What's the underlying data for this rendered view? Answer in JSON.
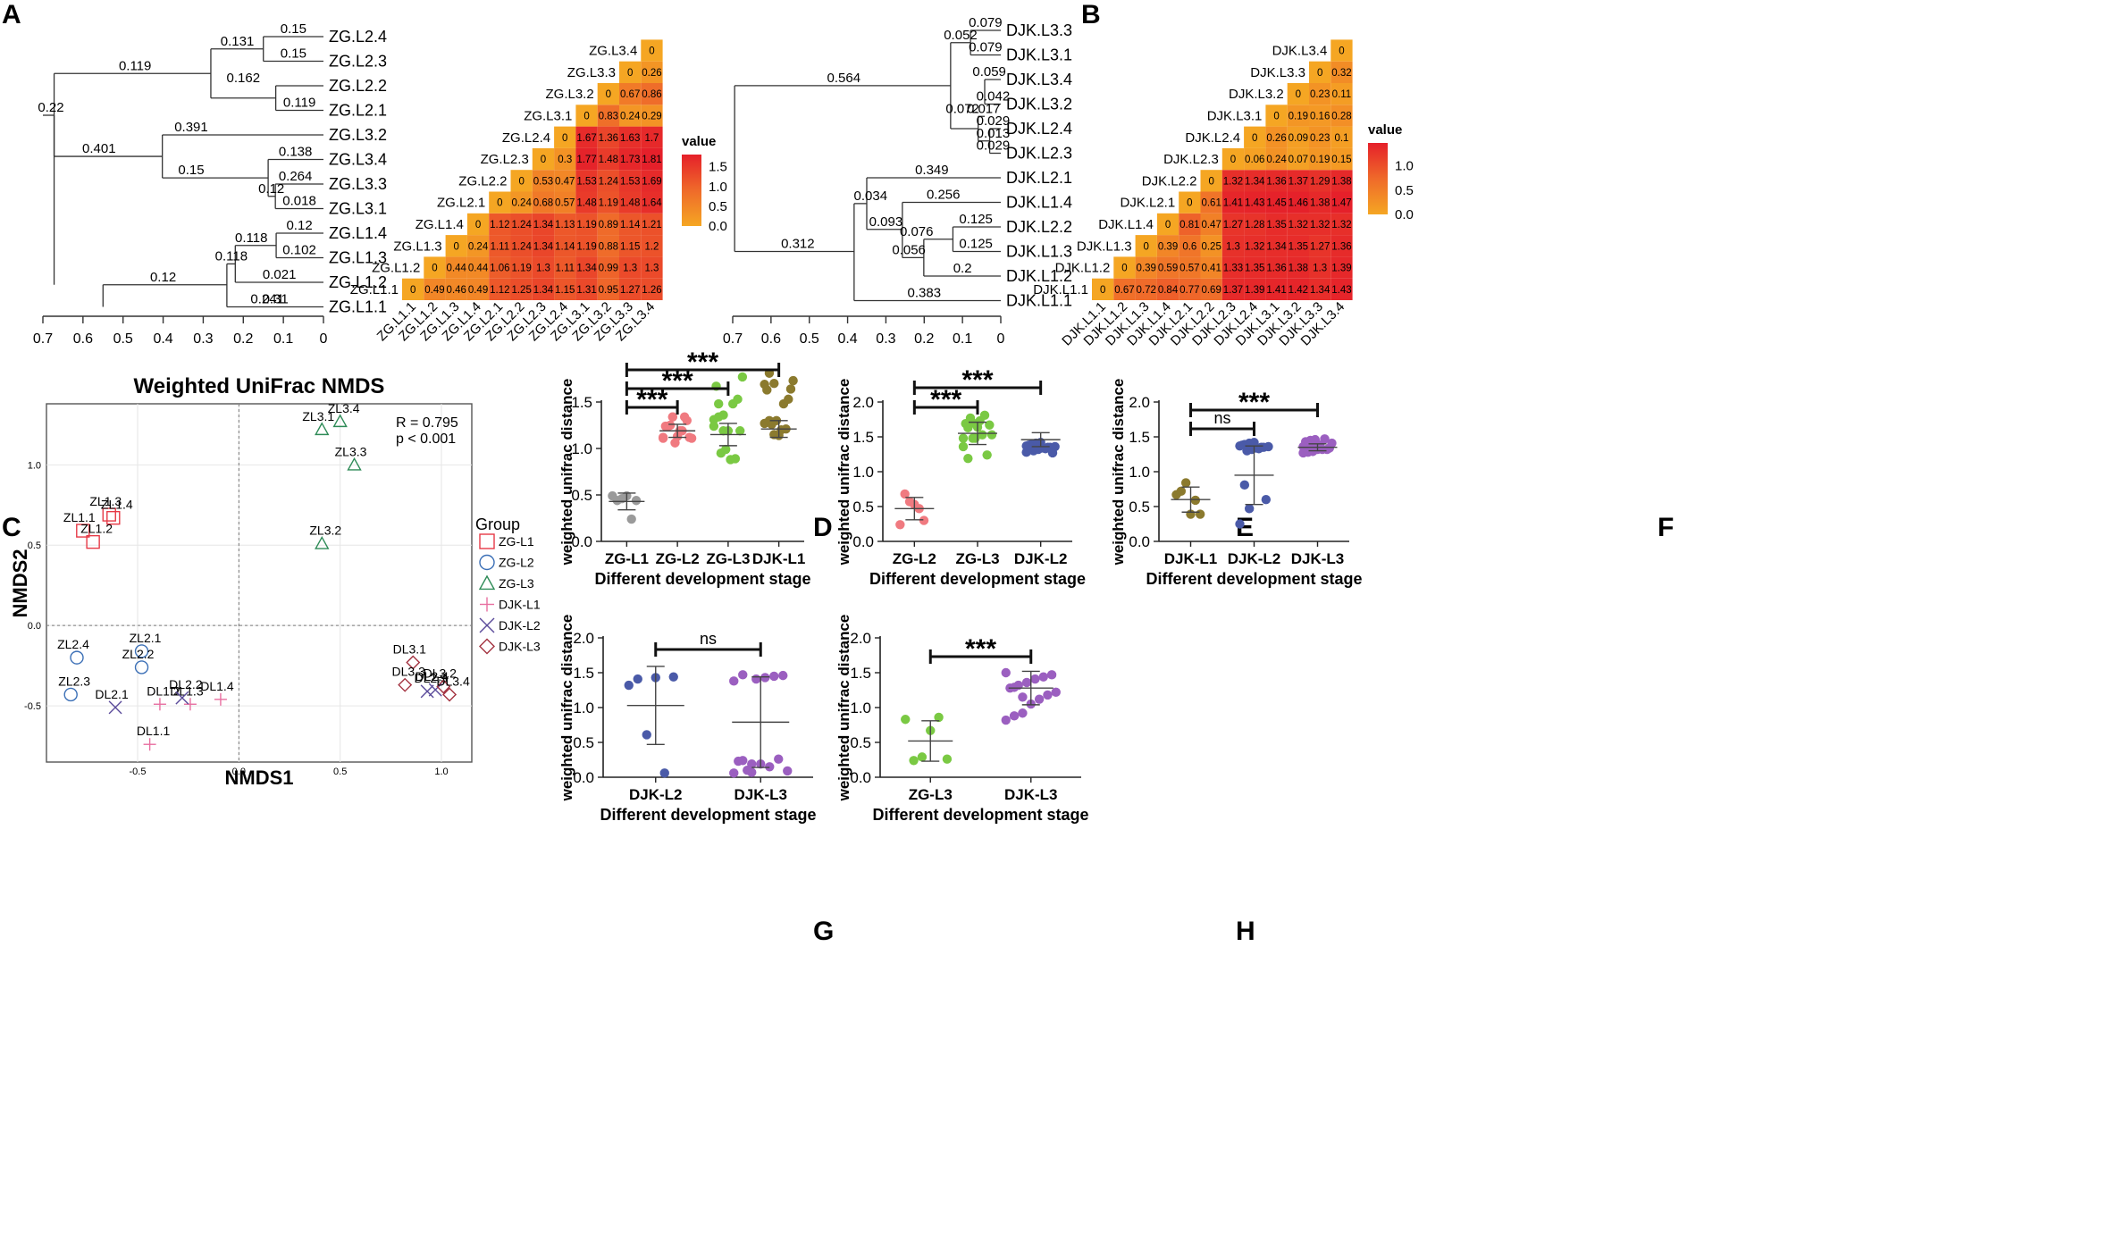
{
  "colors": {
    "heat_low": "#f5a623",
    "heat_mid": "#ef6a2a",
    "heat_high": "#e5202a",
    "ZG-L1": "#e63946",
    "ZG-L2": "#3b6fb6",
    "ZG-L3": "#2e8b57",
    "DJK-L1": "#e86fa0",
    "DJK-L2": "#5a4a9a",
    "DJK-L3": "#a33240",
    "strip_grey": "#9a9a9a",
    "strip_pink": "#f07a80",
    "strip_green": "#7ac943",
    "strip_olive": "#8b7a2e",
    "strip_navy": "#4a5aa8",
    "strip_purple": "#9b5fc0"
  },
  "panel_letters": [
    "A",
    "B",
    "C",
    "D",
    "E",
    "F",
    "G",
    "H"
  ],
  "chart_data": [
    {
      "panel": "A",
      "type": "dendrogram",
      "leaves": [
        "ZG.L2.4",
        "ZG.L2.3",
        "ZG.L2.2",
        "ZG.L2.1",
        "ZG.L3.2",
        "ZG.L3.4",
        "ZG.L3.3",
        "ZG.L3.1",
        "ZG.L1.4",
        "ZG.L1.3",
        "ZG.L1.2",
        "ZG.L1.1"
      ],
      "branch_labels": [
        "0.15",
        "0.15",
        "0.131",
        "0.162",
        "0.119",
        "0.119",
        "0.391",
        "0.401",
        "0.15",
        "0.138",
        "0.264",
        "0.12",
        "0.018",
        "0.12",
        "0.118",
        "0.102",
        "0.118",
        "0.021",
        "0.22",
        "0.12",
        "0.31",
        "0.241"
      ],
      "axis_ticks": [
        "0.7",
        "0.6",
        "0.5",
        "0.4",
        "0.3",
        "0.2",
        "0.1",
        "0"
      ],
      "xlim": [
        0.7,
        0
      ]
    },
    {
      "panel": "A",
      "type": "heatmap",
      "labels": [
        "ZG.L1.1",
        "ZG.L1.2",
        "ZG.L1.3",
        "ZG.L1.4",
        "ZG.L2.1",
        "ZG.L2.2",
        "ZG.L2.3",
        "ZG.L2.4",
        "ZG.L3.1",
        "ZG.L3.2",
        "ZG.L3.3",
        "ZG.L3.4"
      ],
      "rows": [
        [
          "0",
          "0.49",
          "0.46",
          "0.49",
          "1.12",
          "1.25",
          "1.34",
          "1.15",
          "1.31",
          "0.95",
          "1.27",
          "1.26"
        ],
        [
          "0",
          "0.44",
          "0.44",
          "1.06",
          "1.19",
          "1.3",
          "1.11",
          "1.34",
          "0.99",
          "1.3",
          "1.3"
        ],
        [
          "0",
          "0.24",
          "1.11",
          "1.24",
          "1.34",
          "1.14",
          "1.19",
          "0.88",
          "1.15",
          "1.2"
        ],
        [
          "0",
          "1.12",
          "1.24",
          "1.34",
          "1.13",
          "1.19",
          "0.89",
          "1.14",
          "1.21"
        ],
        [
          "0",
          "0.24",
          "0.68",
          "0.57",
          "1.48",
          "1.19",
          "1.48",
          "1.64"
        ],
        [
          "0",
          "0.53",
          "0.47",
          "1.53",
          "1.24",
          "1.53",
          "1.69"
        ],
        [
          "0",
          "0.3",
          "1.77",
          "1.48",
          "1.73",
          "1.81"
        ],
        [
          "0",
          "1.67",
          "1.36",
          "1.63",
          "1.7"
        ],
        [
          "0",
          "0.83",
          "0.24",
          "0.29"
        ],
        [
          "0",
          "0.67",
          "0.86"
        ],
        [
          "0",
          "0.26"
        ],
        [
          "0"
        ]
      ],
      "legend_title": "value",
      "legend_ticks": [
        "1.5",
        "1.0",
        "0.5",
        "0.0"
      ],
      "vmax": 1.81
    },
    {
      "panel": "B",
      "type": "dendrogram",
      "leaves": [
        "DJK.L3.3",
        "DJK.L3.1",
        "DJK.L3.4",
        "DJK.L3.2",
        "DJK.L2.4",
        "DJK.L2.3",
        "DJK.L2.1",
        "DJK.L1.4",
        "DJK.L2.2",
        "DJK.L1.3",
        "DJK.L1.2",
        "DJK.L1.1"
      ],
      "branch_labels": [
        "0.079",
        "0.052",
        "0.079",
        "0.564",
        "0.059",
        "0.072",
        "0.042",
        "0.017",
        "0.029",
        "0.013",
        "0.029",
        "0.349",
        "0.034",
        "0.256",
        "0.093",
        "0.125",
        "0.076",
        "0.056",
        "0.125",
        "0.2",
        "0.312",
        "0.383"
      ],
      "axis_ticks": [
        "0.7",
        "0.6",
        "0.5",
        "0.4",
        "0.3",
        "0.2",
        "0.1",
        "0"
      ],
      "xlim": [
        0.7,
        0
      ]
    },
    {
      "panel": "B",
      "type": "heatmap",
      "labels": [
        "DJK.L1.1",
        "DJK.L1.2",
        "DJK.L1.3",
        "DJK.L1.4",
        "DJK.L2.1",
        "DJK.L2.2",
        "DJK.L2.3",
        "DJK.L2.4",
        "DJK.L3.1",
        "DJK.L3.2",
        "DJK.L3.3",
        "DJK.L3.4"
      ],
      "rows": [
        [
          "0",
          "0.67",
          "0.72",
          "0.84",
          "0.77",
          "0.69",
          "1.37",
          "1.39",
          "1.41",
          "1.42",
          "1.34",
          "1.43"
        ],
        [
          "0",
          "0.39",
          "0.59",
          "0.57",
          "0.41",
          "1.33",
          "1.35",
          "1.36",
          "1.38",
          "1.3",
          "1.39"
        ],
        [
          "0",
          "0.39",
          "0.6",
          "0.25",
          "1.3",
          "1.32",
          "1.34",
          "1.35",
          "1.27",
          "1.36"
        ],
        [
          "0",
          "0.81",
          "0.47",
          "1.27",
          "1.28",
          "1.35",
          "1.32",
          "1.32",
          "1.32"
        ],
        [
          "0",
          "0.61",
          "1.41",
          "1.43",
          "1.45",
          "1.46",
          "1.38",
          "1.47"
        ],
        [
          "0",
          "1.32",
          "1.34",
          "1.36",
          "1.37",
          "1.29",
          "1.38"
        ],
        [
          "0",
          "0.06",
          "0.24",
          "0.07",
          "0.19",
          "0.15"
        ],
        [
          "0",
          "0.26",
          "0.09",
          "0.23",
          "0.1"
        ],
        [
          "0",
          "0.19",
          "0.16",
          "0.28"
        ],
        [
          "0",
          "0.23",
          "0.11"
        ],
        [
          "0",
          "0.32"
        ],
        [
          "0"
        ]
      ],
      "legend_title": "value",
      "legend_ticks": [
        "1.0",
        "0.5",
        "0.0"
      ],
      "vmax": 1.47
    },
    {
      "panel": "C",
      "type": "scatter",
      "title": "Weighted UniFrac  NMDS",
      "xlabel": "NMDS1",
      "ylabel": "NMDS2",
      "stat_r": "R = 0.795",
      "stat_p": "p < 0.001",
      "xlim": [
        -0.95,
        1.15
      ],
      "ylim": [
        -0.85,
        1.38
      ],
      "xticks": [
        "-0.5",
        "0.0",
        "0.5",
        "1.0"
      ],
      "yticks": [
        "1.0",
        "0.5",
        "0.0",
        "-0.5"
      ],
      "legend_title": "Group",
      "groups": [
        {
          "name": "ZG-L1",
          "marker": "square",
          "points": [
            {
              "label": "ZL1.3",
              "x": -0.64,
              "y": 0.69
            },
            {
              "label": "ZL1.4",
              "x": -0.62,
              "y": 0.67
            },
            {
              "label": "ZL1.1",
              "x": -0.77,
              "y": 0.59
            },
            {
              "label": "ZL1.2",
              "x": -0.72,
              "y": 0.52
            }
          ]
        },
        {
          "name": "ZG-L2",
          "marker": "circle",
          "points": [
            {
              "label": "ZL2.4",
              "x": -0.8,
              "y": -0.2
            },
            {
              "label": "ZL2.1",
              "x": -0.48,
              "y": -0.16
            },
            {
              "label": "ZL2.2",
              "x": -0.48,
              "y": -0.26
            },
            {
              "label": "ZL2.3",
              "x": -0.83,
              "y": -0.43
            }
          ]
        },
        {
          "name": "ZG-L3",
          "marker": "triangle",
          "points": [
            {
              "label": "ZL3.1",
              "x": 0.41,
              "y": 1.22
            },
            {
              "label": "ZL3.4",
              "x": 0.5,
              "y": 1.27
            },
            {
              "label": "ZL3.3",
              "x": 0.57,
              "y": 1.0
            },
            {
              "label": "ZL3.2",
              "x": 0.41,
              "y": 0.51
            }
          ]
        },
        {
          "name": "DJK-L1",
          "marker": "plus",
          "points": [
            {
              "label": "DL1.4",
              "x": -0.09,
              "y": -0.46
            },
            {
              "label": "DL1.2",
              "x": -0.39,
              "y": -0.49
            },
            {
              "label": "DL1.3",
              "x": -0.24,
              "y": -0.49
            },
            {
              "label": "DL1.1",
              "x": -0.44,
              "y": -0.74
            }
          ]
        },
        {
          "name": "DJK-L2",
          "marker": "cross",
          "points": [
            {
              "label": "DL2.1",
              "x": -0.61,
              "y": -0.51
            },
            {
              "label": "DL2.2",
              "x": -0.28,
              "y": -0.45
            },
            {
              "label": "DL2.4",
              "x": 0.97,
              "y": -0.4
            },
            {
              "label": "DL2.3",
              "x": 0.93,
              "y": -0.41
            }
          ]
        },
        {
          "name": "DJK-L3",
          "marker": "diamond",
          "points": [
            {
              "label": "DL3.1",
              "x": 0.86,
              "y": -0.23
            },
            {
              "label": "DL3.3",
              "x": 0.82,
              "y": -0.37
            },
            {
              "label": "DL3.2",
              "x": 1.01,
              "y": -0.38
            },
            {
              "label": "DL3.4",
              "x": 1.04,
              "y": -0.43
            }
          ]
        }
      ]
    },
    {
      "panel": "D",
      "type": "strip",
      "ylabel": "weighted unifrac distance",
      "xlabel": "Different development stage",
      "ylim": [
        0,
        1.5
      ],
      "yticks": [
        "0.0",
        "0.5",
        "1.0",
        "1.5"
      ],
      "categories": [
        "ZG-L1",
        "ZG-L2",
        "ZG-L3",
        "DJK-L1"
      ],
      "colors": [
        "strip_grey",
        "strip_pink",
        "strip_green",
        "strip_olive"
      ],
      "means": [
        0.43,
        1.19,
        1.15,
        1.21
      ],
      "sds": [
        0.09,
        0.07,
        0.12,
        0.09
      ],
      "points": [
        [
          0.49,
          0.44,
          0.46,
          0.49,
          0.24,
          0.44
        ],
        [
          1.12,
          1.24,
          1.34,
          1.13,
          1.19,
          1.3,
          1.11,
          1.24,
          1.25,
          1.06,
          1.19,
          1.34,
          1.12,
          1.11,
          1.24,
          1.34
        ],
        [
          1.31,
          1.34,
          1.19,
          1.19,
          1.48,
          1.53,
          1.77,
          1.67,
          0.95,
          0.99,
          0.88,
          0.89,
          1.19,
          1.24,
          1.48,
          1.36
        ],
        [
          1.27,
          1.3,
          1.15,
          1.14,
          1.48,
          1.53,
          1.73,
          1.63,
          1.26,
          1.3,
          1.2,
          1.21,
          1.64,
          1.69,
          1.81,
          1.7
        ]
      ],
      "brackets": [
        {
          "from": 0,
          "to": 1,
          "level": 1,
          "label": "***"
        },
        {
          "from": 0,
          "to": 2,
          "level": 2,
          "label": "***"
        },
        {
          "from": 0,
          "to": 3,
          "level": 3,
          "label": "***"
        }
      ]
    },
    {
      "panel": "E",
      "type": "strip",
      "ylabel": "weighted unifrac distance",
      "xlabel": "Different development stage",
      "ylim": [
        0,
        2.0
      ],
      "yticks": [
        "0.0",
        "0.5",
        "1.0",
        "1.5",
        "2.0"
      ],
      "categories": [
        "ZG-L2",
        "ZG-L3",
        "DJK-L2"
      ],
      "colors": [
        "strip_pink",
        "strip_green",
        "strip_navy"
      ],
      "means": [
        0.47,
        1.55,
        1.46
      ],
      "sds": [
        0.16,
        0.16,
        0.1
      ],
      "points": [
        [
          0.24,
          0.68,
          0.57,
          0.53,
          0.47,
          0.3
        ],
        [
          1.48,
          1.19,
          1.48,
          1.64,
          1.53,
          1.24,
          1.53,
          1.69,
          1.77,
          1.48,
          1.73,
          1.81,
          1.67,
          1.36,
          1.63,
          1.7
        ],
        [
          1.37,
          1.39,
          1.41,
          1.42,
          1.33,
          1.35,
          1.36,
          1.38,
          1.3,
          1.32,
          1.34,
          1.35,
          1.27,
          1.28,
          1.35,
          1.32
        ]
      ],
      "brackets": [
        {
          "from": 0,
          "to": 1,
          "level": 1,
          "label": "***"
        },
        {
          "from": 0,
          "to": 2,
          "level": 2,
          "label": "***"
        }
      ]
    },
    {
      "panel": "F",
      "type": "strip",
      "ylabel": "weighted unifrac distance",
      "xlabel": "Different development stage",
      "ylim": [
        0,
        2.0
      ],
      "yticks": [
        "0.0",
        "0.5",
        "1.0",
        "1.5",
        "2.0"
      ],
      "categories": [
        "DJK-L1",
        "DJK-L2",
        "DJK-L3"
      ],
      "colors": [
        "strip_olive",
        "strip_navy",
        "strip_purple"
      ],
      "means": [
        0.6,
        0.95,
        1.35
      ],
      "sds": [
        0.18,
        0.42,
        0.05
      ],
      "points": [
        [
          0.67,
          0.72,
          0.84,
          0.39,
          0.59,
          0.39
        ],
        [
          1.37,
          1.39,
          1.41,
          1.42,
          1.33,
          1.35,
          1.36,
          1.38,
          1.3,
          1.32,
          1.34,
          1.35,
          0.6,
          0.25,
          0.81,
          0.47
        ],
        [
          1.27,
          1.28,
          1.35,
          1.32,
          1.32,
          1.32,
          1.41,
          1.43,
          1.45,
          1.46,
          1.38,
          1.47,
          1.34,
          1.36,
          1.37,
          1.29
        ]
      ],
      "brackets": [
        {
          "from": 0,
          "to": 1,
          "level": 1,
          "label": "ns"
        },
        {
          "from": 0,
          "to": 2,
          "level": 2,
          "label": "***"
        }
      ]
    },
    {
      "panel": "G",
      "type": "strip",
      "ylabel": "weighted unifrac distance",
      "xlabel": "Different development stage",
      "ylim": [
        0,
        2.0
      ],
      "yticks": [
        "0.0",
        "0.5",
        "1.0",
        "1.5",
        "2.0"
      ],
      "categories": [
        "DJK-L2",
        "DJK-L3"
      ],
      "colors": [
        "strip_navy",
        "strip_purple"
      ],
      "means": [
        1.03,
        0.79
      ],
      "sds": [
        0.56,
        0.65
      ],
      "points": [
        [
          1.32,
          1.41,
          0.61,
          1.43,
          0.06,
          1.44
        ],
        [
          0.06,
          0.24,
          0.07,
          0.19,
          0.15,
          0.26,
          0.09,
          0.23,
          0.1,
          1.41,
          1.43,
          1.45,
          1.46,
          1.38,
          1.47,
          0.19
        ]
      ],
      "brackets": [
        {
          "from": 0,
          "to": 1,
          "level": 1,
          "label": "ns"
        }
      ]
    },
    {
      "panel": "H",
      "type": "strip",
      "ylabel": "weighted unifrac distance",
      "xlabel": "Different development stage",
      "ylim": [
        0,
        2.0
      ],
      "yticks": [
        "0.0",
        "0.5",
        "1.0",
        "1.5",
        "2.0"
      ],
      "categories": [
        "ZG-L3",
        "DJK-L3"
      ],
      "colors": [
        "strip_green",
        "strip_purple"
      ],
      "means": [
        0.52,
        1.28
      ],
      "sds": [
        0.29,
        0.24
      ],
      "points": [
        [
          0.83,
          0.24,
          0.29,
          0.67,
          0.86,
          0.26
        ],
        [
          0.82,
          0.88,
          0.92,
          1.05,
          1.12,
          1.18,
          1.22,
          1.28,
          1.32,
          1.36,
          1.41,
          1.44,
          1.47,
          1.5,
          1.29,
          1.15
        ]
      ],
      "brackets": [
        {
          "from": 0,
          "to": 1,
          "level": 1,
          "label": "***"
        }
      ]
    }
  ]
}
